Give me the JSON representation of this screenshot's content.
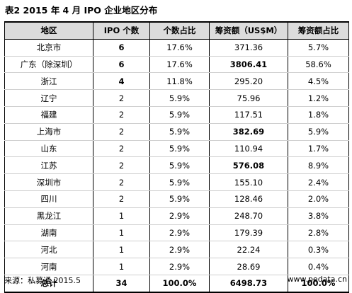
{
  "title": "表2   2015 年 4 月 IPO 企业地区分布",
  "headers": [
    "地区",
    "IPO 个数",
    "个数占比",
    "筹资额（US$M）",
    "筹资额占比"
  ],
  "rows": [
    [
      "北京市",
      "6",
      "17.6%",
      "371.36",
      "5.7%"
    ],
    [
      "广东（除深圳）",
      "6",
      "17.6%",
      "3806.41",
      "58.6%"
    ],
    [
      "浙江",
      "4",
      "11.8%",
      "295.20",
      "4.5%"
    ],
    [
      "辽宁",
      "2",
      "5.9%",
      "75.96",
      "1.2%"
    ],
    [
      "福建",
      "2",
      "5.9%",
      "117.51",
      "1.8%"
    ],
    [
      "上海市",
      "2",
      "5.9%",
      "382.69",
      "5.9%"
    ],
    [
      "山东",
      "2",
      "5.9%",
      "110.94",
      "1.7%"
    ],
    [
      "江苏",
      "2",
      "5.9%",
      "576.08",
      "8.9%"
    ],
    [
      "深圳市",
      "2",
      "5.9%",
      "155.10",
      "2.4%"
    ],
    [
      "四川",
      "2",
      "5.9%",
      "128.46",
      "2.0%"
    ],
    [
      "黑龙江",
      "1",
      "2.9%",
      "248.70",
      "3.8%"
    ],
    [
      "湖南",
      "1",
      "2.9%",
      "179.39",
      "2.8%"
    ],
    [
      "河北",
      "1",
      "2.9%",
      "22.24",
      "0.3%"
    ],
    [
      "河南",
      "1",
      "2.9%",
      "28.69",
      "0.4%"
    ]
  ],
  "total": [
    "总计",
    "34",
    "100.0%",
    "6498.73",
    "100.0%"
  ],
  "source": "来源：私募通  2015.5",
  "website": "www.pedata.cn"
}
